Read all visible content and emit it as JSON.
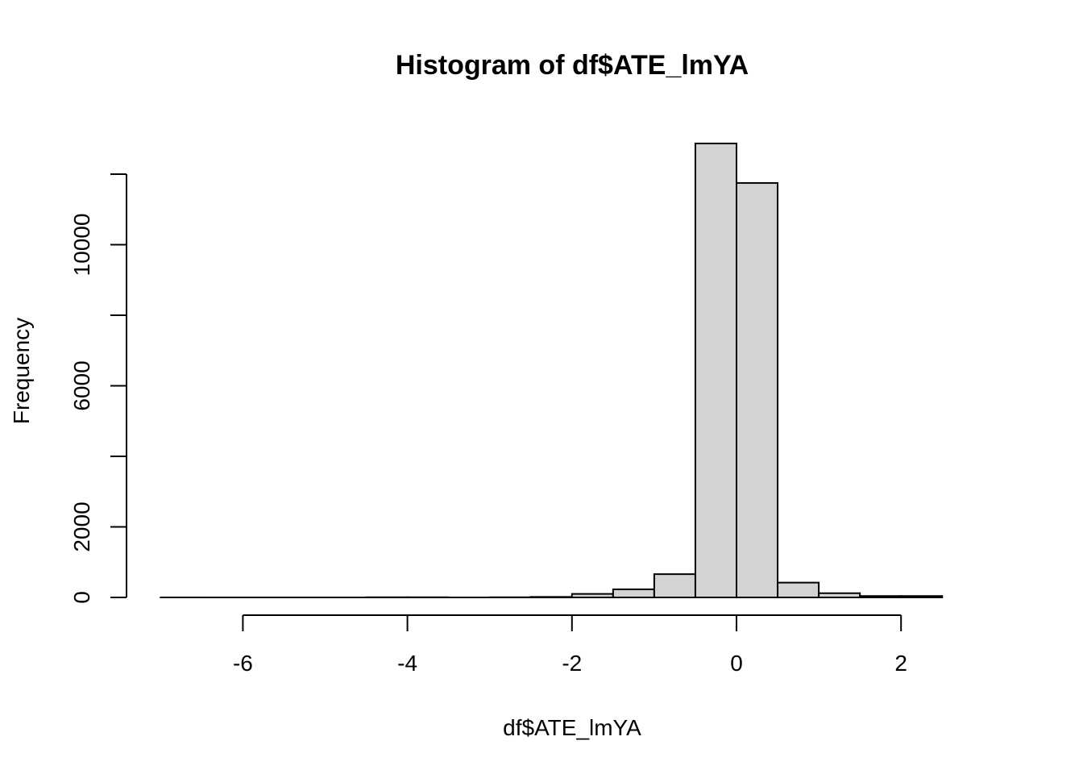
{
  "chart_data": {
    "type": "bar",
    "title": "Histogram of df$ATE_lmYA",
    "xlabel": "df$ATE_lmYA",
    "ylabel": "Frequency",
    "xlim": [
      -7,
      3
    ],
    "ylim": [
      0,
      13000
    ],
    "x_ticks": [
      -6,
      -4,
      -2,
      0,
      2
    ],
    "x_tick_labels": [
      "-6",
      "-4",
      "-2",
      "0",
      "2"
    ],
    "y_ticks": [
      0,
      2000,
      4000,
      6000,
      8000,
      10000,
      12000
    ],
    "y_tick_labels": [
      "0",
      "2000",
      "",
      "6000",
      "",
      "10000",
      ""
    ],
    "bin_width": 0.5,
    "bins": [
      {
        "start": -7.0,
        "end": -6.5,
        "count": 1
      },
      {
        "start": -6.5,
        "end": -6.0,
        "count": 0
      },
      {
        "start": -6.0,
        "end": -5.5,
        "count": 0
      },
      {
        "start": -5.5,
        "end": -5.0,
        "count": 0
      },
      {
        "start": -5.0,
        "end": -4.5,
        "count": 0
      },
      {
        "start": -4.5,
        "end": -4.0,
        "count": 5
      },
      {
        "start": -4.0,
        "end": -3.5,
        "count": 5
      },
      {
        "start": -3.5,
        "end": -3.0,
        "count": 0
      },
      {
        "start": -3.0,
        "end": -2.5,
        "count": 5
      },
      {
        "start": -2.5,
        "end": -2.0,
        "count": 15
      },
      {
        "start": -2.0,
        "end": -1.5,
        "count": 100
      },
      {
        "start": -1.5,
        "end": -1.0,
        "count": 230
      },
      {
        "start": -1.0,
        "end": -0.5,
        "count": 660
      },
      {
        "start": -0.5,
        "end": 0.0,
        "count": 12870
      },
      {
        "start": 0.0,
        "end": 0.5,
        "count": 11750
      },
      {
        "start": 0.5,
        "end": 1.0,
        "count": 420
      },
      {
        "start": 1.0,
        "end": 1.5,
        "count": 120
      },
      {
        "start": 1.5,
        "end": 2.0,
        "count": 40
      },
      {
        "start": 2.0,
        "end": 2.5,
        "count": 40
      }
    ],
    "bar_fill": "#d3d3d3",
    "bar_stroke": "#000000",
    "grid": false,
    "legend": "none"
  }
}
